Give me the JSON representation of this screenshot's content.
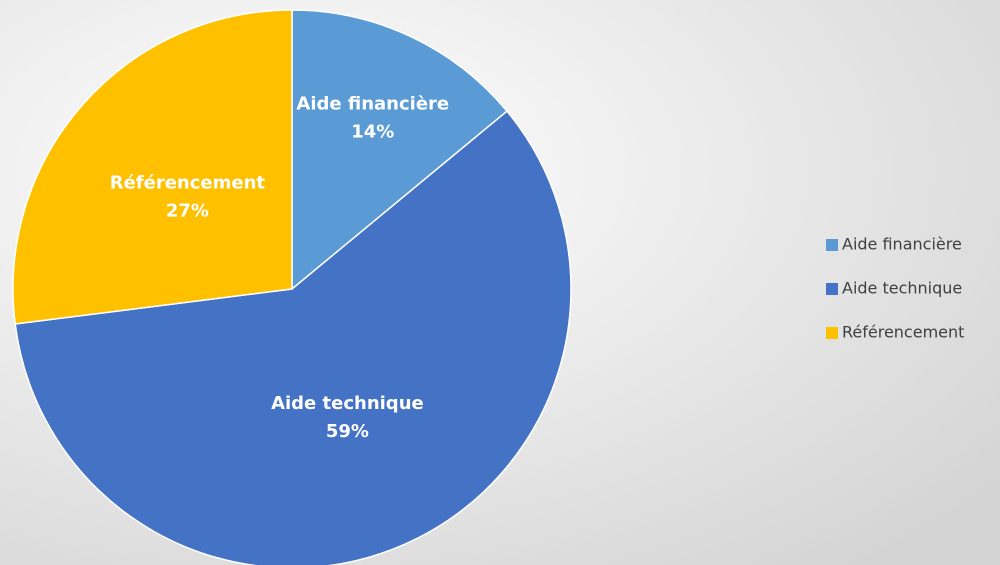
{
  "chart_data": {
    "type": "pie",
    "categories": [
      "Aide financière",
      "Aide technique",
      "Référencement"
    ],
    "values": [
      14,
      59,
      27
    ],
    "value_labels": [
      "14%",
      "59%",
      "27%"
    ],
    "colors": [
      "#5b9bd5",
      "#4472c4",
      "#ffc000"
    ],
    "legend": "right"
  }
}
